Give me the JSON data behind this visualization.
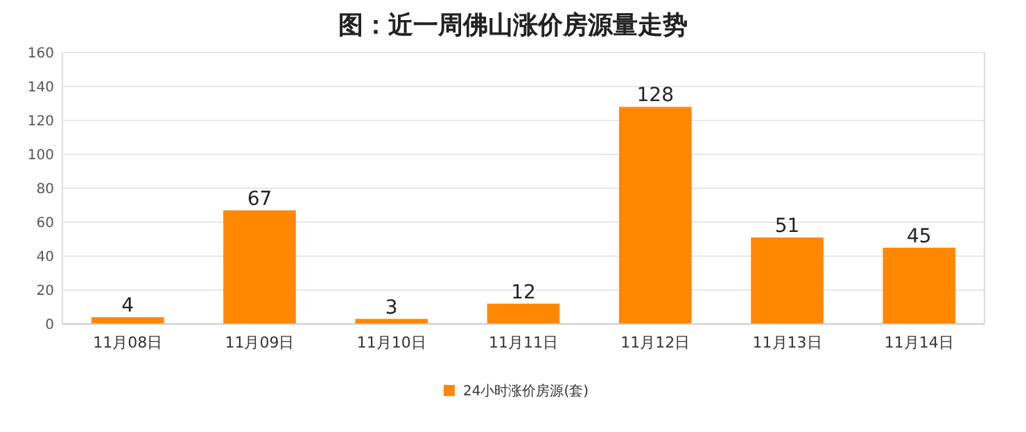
{
  "chart_data": {
    "type": "bar",
    "title": "图：近一周佛山涨价房源量走势",
    "categories": [
      "11月08日",
      "11月09日",
      "11月10日",
      "11月11日",
      "11月12日",
      "11月13日",
      "11月14日"
    ],
    "series": [
      {
        "name": "24小时涨价房源(套)",
        "color": "#ff8800",
        "values": [
          4,
          67,
          3,
          12,
          128,
          51,
          45
        ]
      }
    ],
    "ylim": [
      0,
      160
    ],
    "yticks": [
      0,
      20,
      40,
      60,
      80,
      100,
      120,
      140,
      160
    ],
    "grid": "y",
    "data_labels": true,
    "legend": "bottom"
  }
}
